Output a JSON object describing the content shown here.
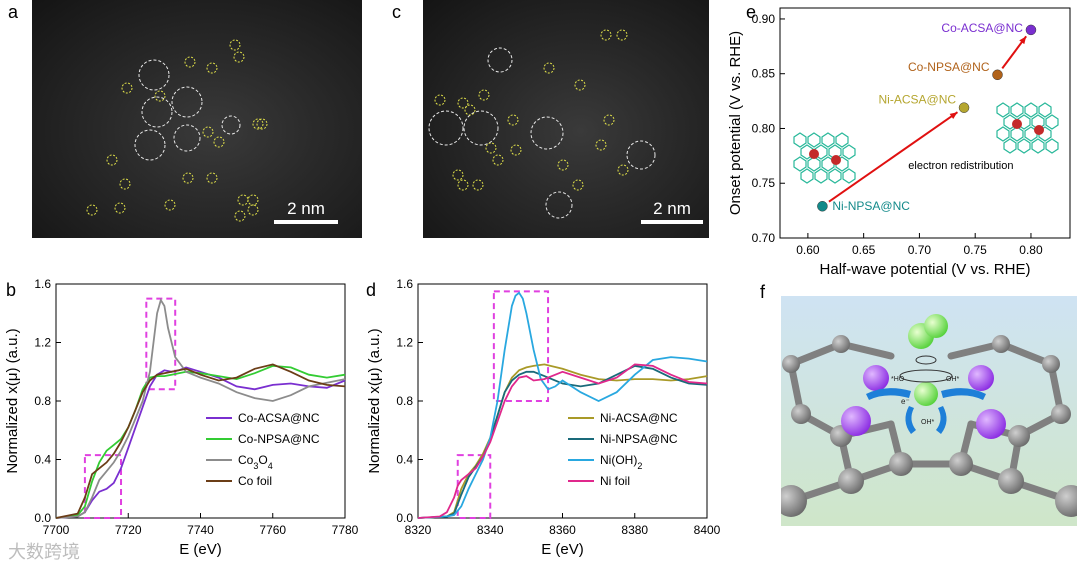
{
  "panels": {
    "a": {
      "letter": "a",
      "scalebar": "2 nm"
    },
    "c": {
      "letter": "c",
      "scalebar": "2 nm"
    },
    "e": {
      "letter": "e"
    },
    "b": {
      "letter": "b"
    },
    "d": {
      "letter": "d"
    },
    "f": {
      "letter": "f",
      "labels": {
        "ho": "*HO",
        "oh": "OH*",
        "oh_bottom": "OH*",
        "electron": "e⁻"
      }
    }
  },
  "watermark": "大数跨境",
  "colors": {
    "co_acsa": "#7a2fd0",
    "co_npsa": "#33cc33",
    "co3o4": "#8c8c8c",
    "co_foil": "#6b3d17",
    "ni_acsa": "#a99a28",
    "ni_npsa": "#1a6a7a",
    "nioh2": "#29a8e0",
    "ni_foil": "#e0288c",
    "dashbox": "#e040e0",
    "arrow": "#e01010"
  },
  "chart_data": [
    {
      "id": "e",
      "type": "scatter",
      "xlabel": "Half-wave potential (V vs. RHE)",
      "ylabel": "Onset potential (V vs. RHE)",
      "xlim": [
        0.575,
        0.835
      ],
      "ylim": [
        0.7,
        0.91
      ],
      "xticks": [
        "0.60",
        "0.65",
        "0.70",
        "0.75",
        "0.80"
      ],
      "yticks": [
        "0.70",
        "0.75",
        "0.80",
        "0.85",
        "0.90"
      ],
      "points": [
        {
          "name": "Ni-NPSA@NC",
          "x": 0.613,
          "y": 0.729,
          "color": "#138a8a"
        },
        {
          "name": "Ni-ACSA@NC",
          "x": 0.74,
          "y": 0.819,
          "color": "#b5a630"
        },
        {
          "name": "Co-NPSA@NC",
          "x": 0.77,
          "y": 0.849,
          "color": "#b0621a"
        },
        {
          "name": "Co-ACSA@NC",
          "x": 0.8,
          "y": 0.89,
          "color": "#7a2fd0"
        }
      ],
      "annotation": "electron redistribution"
    },
    {
      "id": "b",
      "type": "line",
      "xlabel": "E (eV)",
      "ylabel": "Normalized x(μ) (a.u.)",
      "xlim": [
        7700,
        7780
      ],
      "ylim": [
        0.0,
        1.6
      ],
      "xticks": [
        "7700",
        "7720",
        "7740",
        "7760",
        "7780"
      ],
      "yticks": [
        "0.0",
        "0.4",
        "0.8",
        "1.2",
        "1.6"
      ],
      "legend_position": "bottom-right",
      "series": [
        {
          "name": "Co-ACSA@NC",
          "x": [
            7700,
            7706,
            7708,
            7710,
            7712,
            7714,
            7716,
            7718,
            7720,
            7722,
            7724,
            7726,
            7728,
            7730,
            7732,
            7734,
            7736,
            7740,
            7745,
            7750,
            7755,
            7760,
            7765,
            7770,
            7775,
            7780
          ],
          "y": [
            0.0,
            0.01,
            0.04,
            0.12,
            0.18,
            0.2,
            0.24,
            0.34,
            0.48,
            0.62,
            0.76,
            0.9,
            0.98,
            1.01,
            1.0,
            1.01,
            1.03,
            1.0,
            0.96,
            0.9,
            0.88,
            0.91,
            0.92,
            0.9,
            0.89,
            0.94
          ]
        },
        {
          "name": "Co-NPSA@NC",
          "x": [
            7700,
            7706,
            7708,
            7710,
            7712,
            7714,
            7716,
            7718,
            7720,
            7722,
            7724,
            7726,
            7728,
            7730,
            7732,
            7734,
            7736,
            7740,
            7745,
            7750,
            7755,
            7760,
            7765,
            7770,
            7775,
            7780
          ],
          "y": [
            0.0,
            0.02,
            0.08,
            0.25,
            0.38,
            0.46,
            0.5,
            0.54,
            0.62,
            0.74,
            0.88,
            0.96,
            0.97,
            0.97,
            0.98,
            0.99,
            1.0,
            0.99,
            0.97,
            0.95,
            0.99,
            1.04,
            1.03,
            0.98,
            0.96,
            0.98
          ]
        },
        {
          "name": "Co₃O₄",
          "x": [
            7700,
            7706,
            7708,
            7710,
            7712,
            7714,
            7716,
            7718,
            7720,
            7722,
            7724,
            7726,
            7727,
            7728,
            7729,
            7730,
            7731,
            7733,
            7736,
            7740,
            7745,
            7750,
            7755,
            7760,
            7765,
            7770,
            7780
          ],
          "y": [
            0.0,
            0.01,
            0.04,
            0.14,
            0.26,
            0.32,
            0.38,
            0.46,
            0.56,
            0.68,
            0.8,
            1.0,
            1.2,
            1.4,
            1.49,
            1.45,
            1.3,
            1.1,
            1.0,
            0.96,
            0.92,
            0.86,
            0.82,
            0.8,
            0.84,
            0.9,
            0.95
          ]
        },
        {
          "name": "Co foil",
          "x": [
            7700,
            7706,
            7708,
            7710,
            7712,
            7714,
            7716,
            7718,
            7720,
            7722,
            7724,
            7726,
            7728,
            7730,
            7732,
            7736,
            7740,
            7745,
            7750,
            7755,
            7760,
            7765,
            7770,
            7775,
            7780
          ],
          "y": [
            0.0,
            0.03,
            0.14,
            0.3,
            0.34,
            0.38,
            0.44,
            0.52,
            0.62,
            0.74,
            0.86,
            0.94,
            0.98,
            0.99,
            1.0,
            1.02,
            0.98,
            0.94,
            0.96,
            1.02,
            1.05,
            1.0,
            0.94,
            0.91,
            0.9
          ]
        }
      ],
      "boxes": [
        {
          "x": [
            7708,
            7718
          ],
          "y": [
            0.0,
            0.43
          ]
        },
        {
          "x": [
            7725,
            7733
          ],
          "y": [
            0.88,
            1.5
          ]
        }
      ]
    },
    {
      "id": "d",
      "type": "line",
      "xlabel": "E (eV)",
      "ylabel": "Normalized x(μ) (a.u.)",
      "xlim": [
        8320,
        8400
      ],
      "ylim": [
        0.0,
        1.6
      ],
      "xticks": [
        "8320",
        "8340",
        "8360",
        "8380",
        "8400"
      ],
      "yticks": [
        "0.0",
        "0.4",
        "0.8",
        "1.2",
        "1.6"
      ],
      "legend_position": "bottom-right",
      "series": [
        {
          "name": "Ni-ACSA@NC",
          "x": [
            8320,
            8328,
            8330,
            8332,
            8334,
            8336,
            8338,
            8340,
            8342,
            8344,
            8346,
            8348,
            8350,
            8352,
            8355,
            8360,
            8365,
            8370,
            8375,
            8380,
            8385,
            8390,
            8395,
            8400
          ],
          "y": [
            0.0,
            0.01,
            0.04,
            0.2,
            0.3,
            0.36,
            0.44,
            0.55,
            0.7,
            0.86,
            0.96,
            1.01,
            1.03,
            1.04,
            1.05,
            1.02,
            0.98,
            0.95,
            0.94,
            0.95,
            0.95,
            0.94,
            0.95,
            0.97
          ]
        },
        {
          "name": "Ni-NPSA@NC",
          "x": [
            8320,
            8328,
            8330,
            8332,
            8334,
            8336,
            8338,
            8340,
            8342,
            8344,
            8346,
            8348,
            8350,
            8352,
            8355,
            8360,
            8365,
            8370,
            8375,
            8380,
            8385,
            8390,
            8395,
            8400
          ],
          "y": [
            0.0,
            0.01,
            0.03,
            0.16,
            0.28,
            0.35,
            0.42,
            0.54,
            0.7,
            0.86,
            0.94,
            0.98,
            1.0,
            1.0,
            0.97,
            0.92,
            0.9,
            0.92,
            0.98,
            1.04,
            1.02,
            0.96,
            0.92,
            0.91
          ]
        },
        {
          "name": "Ni(OH)₂",
          "x": [
            8320,
            8328,
            8330,
            8332,
            8334,
            8336,
            8338,
            8340,
            8342,
            8344,
            8346,
            8347,
            8348,
            8349,
            8350,
            8352,
            8354,
            8356,
            8358,
            8360,
            8365,
            8370,
            8375,
            8380,
            8385,
            8390,
            8395,
            8400
          ],
          "y": [
            0.0,
            0.01,
            0.02,
            0.08,
            0.2,
            0.3,
            0.4,
            0.55,
            0.8,
            1.15,
            1.45,
            1.52,
            1.54,
            1.5,
            1.4,
            1.15,
            0.95,
            0.88,
            0.9,
            0.94,
            0.86,
            0.8,
            0.86,
            0.98,
            1.08,
            1.1,
            1.09,
            1.07
          ]
        },
        {
          "name": "Ni foil",
          "x": [
            8320,
            8326,
            8328,
            8330,
            8331,
            8332,
            8334,
            8336,
            8338,
            8340,
            8342,
            8344,
            8346,
            8348,
            8350,
            8352,
            8355,
            8360,
            8365,
            8370,
            8375,
            8380,
            8385,
            8390,
            8395,
            8400
          ],
          "y": [
            0.0,
            0.01,
            0.04,
            0.14,
            0.22,
            0.26,
            0.3,
            0.34,
            0.42,
            0.52,
            0.66,
            0.8,
            0.9,
            0.96,
            0.97,
            0.94,
            0.95,
            1.0,
            0.96,
            0.92,
            0.96,
            1.05,
            1.04,
            0.98,
            0.93,
            0.92
          ]
        }
      ],
      "boxes": [
        {
          "x": [
            8331,
            8340
          ],
          "y": [
            0.0,
            0.43
          ]
        },
        {
          "x": [
            8341,
            8356
          ],
          "y": [
            0.8,
            1.55
          ]
        }
      ]
    }
  ]
}
